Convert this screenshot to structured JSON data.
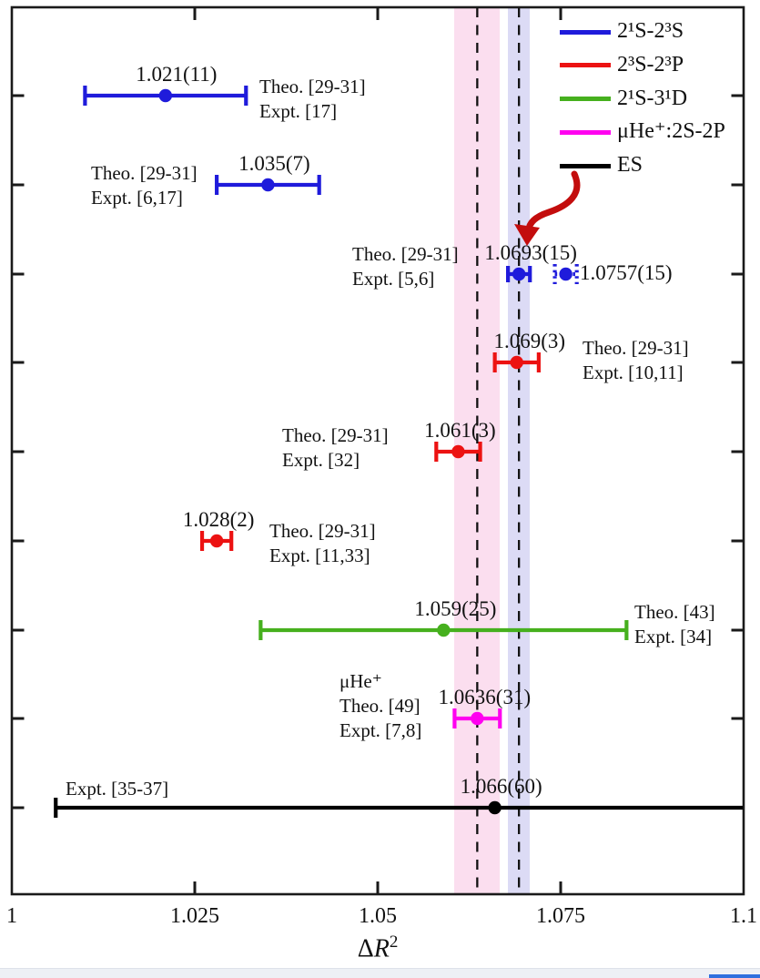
{
  "chart_data": {
    "type": "scatter",
    "title": "",
    "xlabel_text": "ΔR²",
    "xlabel_parts": {
      "delta": "Δ",
      "variable": "R",
      "exponent": "2"
    },
    "xlim": [
      1.0,
      1.1
    ],
    "x_tick_values": [
      1,
      1.025,
      1.05,
      1.075,
      1.1
    ],
    "x_tick_labels": [
      "1",
      "1.025",
      "1.05",
      "1.075",
      "1.1"
    ],
    "grid": false,
    "legend_position": "top-right",
    "legend": [
      {
        "label": "2¹S-2³S",
        "color": "#1f1bdb"
      },
      {
        "label": "2³S-2³P",
        "color": "#ec1212"
      },
      {
        "label": "2¹S-3¹D",
        "color": "#46b01e"
      },
      {
        "label": "μHe⁺:2S-2P",
        "color": "#ff00f0"
      },
      {
        "label": "ES",
        "color": "#000000"
      }
    ],
    "reference_bands": [
      {
        "center": 1.0636,
        "half_width": 0.0031,
        "band_color": "#fbdeef",
        "line_style": "dashed"
      },
      {
        "center": 1.0693,
        "half_width": 0.0015,
        "band_color": "#dcdbf5",
        "line_style": "dashed"
      }
    ],
    "points": [
      {
        "series": "2¹S-2³S",
        "color": "#1f1bdb",
        "value": 1.021,
        "uncertainty": 0.011,
        "display": "1.021(11)",
        "line": "solid",
        "refs": [
          "Theo. [29-31]",
          "Expt. [17]"
        ]
      },
      {
        "series": "2¹S-2³S",
        "color": "#1f1bdb",
        "value": 1.035,
        "uncertainty": 0.007,
        "display": "1.035(7)",
        "line": "solid",
        "refs": [
          "Theo. [29-31]",
          "Expt. [6,17]"
        ]
      },
      {
        "series": "2¹S-2³S",
        "color": "#1f1bdb",
        "value": 1.0693,
        "uncertainty": 0.0015,
        "display": "1.0693(15)",
        "line": "solid",
        "refs": [
          "Theo. [29-31]",
          "Expt. [5,6]"
        ]
      },
      {
        "series": "2¹S-2³S",
        "color": "#1f1bdb",
        "value": 1.0757,
        "uncertainty": 0.0015,
        "display": "1.0757(15)",
        "line": "dotted",
        "refs": []
      },
      {
        "series": "2³S-2³P",
        "color": "#ec1212",
        "value": 1.069,
        "uncertainty": 0.003,
        "display": "1.069(3)",
        "line": "solid",
        "refs": [
          "Theo. [29-31]",
          "Expt. [10,11]"
        ]
      },
      {
        "series": "2³S-2³P",
        "color": "#ec1212",
        "value": 1.061,
        "uncertainty": 0.003,
        "display": "1.061(3)",
        "line": "solid",
        "refs": [
          "Theo. [29-31]",
          "Expt. [32]"
        ]
      },
      {
        "series": "2³S-2³P",
        "color": "#ec1212",
        "value": 1.028,
        "uncertainty": 0.002,
        "display": "1.028(2)",
        "line": "solid",
        "refs": [
          "Theo. [29-31]",
          "Expt. [11,33]"
        ]
      },
      {
        "series": "2¹S-3¹D",
        "color": "#46b01e",
        "value": 1.059,
        "uncertainty": 0.025,
        "display": "1.059(25)",
        "line": "solid",
        "refs": [
          "Theo. [43]",
          "Expt. [34]"
        ]
      },
      {
        "series": "μHe⁺:2S-2P",
        "color": "#ff00f0",
        "value": 1.0636,
        "uncertainty": 0.0031,
        "display": "1.0636(31)",
        "line": "solid",
        "refs": [
          "μHe⁺",
          "Theo. [49]",
          "Expt. [7,8]"
        ]
      },
      {
        "series": "ES",
        "color": "#000000",
        "value": 1.066,
        "uncertainty": 0.06,
        "display": "1.066(60)",
        "line": "solid",
        "refs": [
          "Expt. [35-37]"
        ]
      }
    ],
    "annotation_arrow": {
      "color": "#c30d0d",
      "points_to_display": "1.0693(15)"
    }
  }
}
